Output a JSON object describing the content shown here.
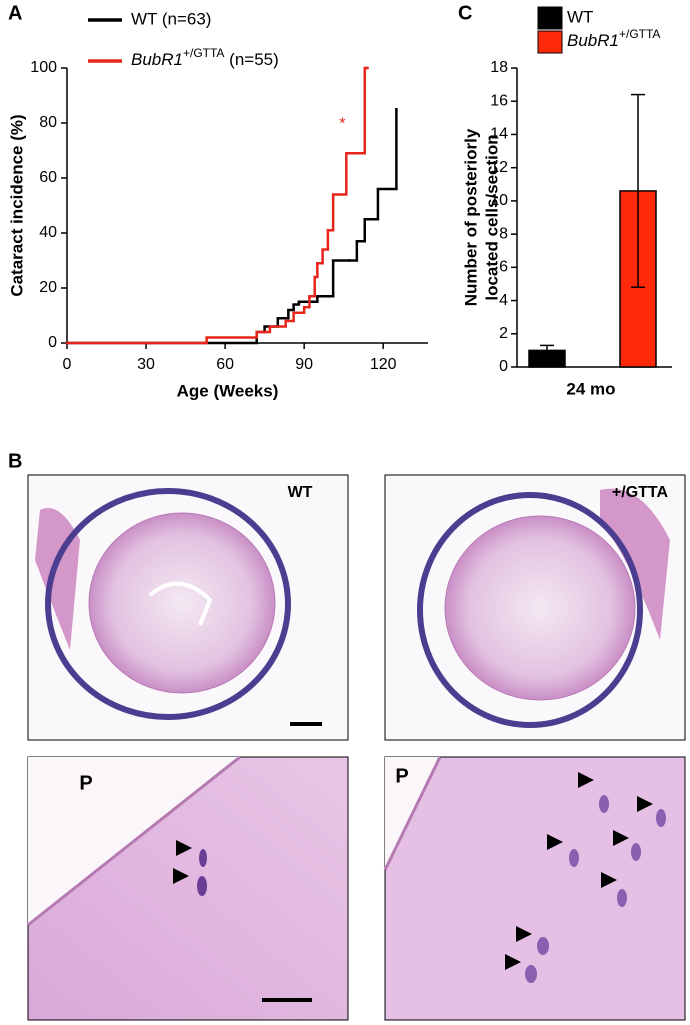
{
  "panel_labels": [
    "A",
    "B",
    "C"
  ],
  "chart_data": [
    {
      "type": "step",
      "xlabel": "Age (Weeks)",
      "ylabel": "Cataract incidence (%)",
      "xlim": [
        0,
        137
      ],
      "xticks": [
        0,
        30,
        60,
        90,
        120
      ],
      "ylim": [
        0,
        100
      ],
      "yticks": [
        0,
        20,
        40,
        60,
        80,
        100
      ],
      "series": [
        {
          "name": "WT (n=63)",
          "color": "#000000",
          "x": [
            0,
            72,
            75,
            80,
            84,
            86,
            88,
            95,
            101,
            107,
            110,
            113,
            118,
            125
          ],
          "values": [
            0,
            4,
            6,
            9,
            12,
            14,
            15,
            17,
            30,
            30,
            37,
            45,
            56,
            85
          ]
        },
        {
          "name": "BubR1+/GTTA (n=55)",
          "color": "#e8251a",
          "x": [
            0,
            53,
            72,
            77,
            83,
            86,
            90,
            92,
            94,
            95,
            97,
            99,
            101,
            106,
            113,
            114
          ],
          "values": [
            0,
            2,
            4,
            6,
            8,
            11,
            13,
            17,
            24,
            29,
            34,
            41,
            54,
            69,
            100,
            100
          ]
        }
      ],
      "annotations": [
        {
          "text": "*",
          "x": 106,
          "y": 81,
          "color": "#e8251a"
        }
      ]
    },
    {
      "type": "bar",
      "ylabel": [
        "Number of posteriorly",
        "located cells/section"
      ],
      "categories": [
        "24 mo"
      ],
      "ylim": [
        0,
        18
      ],
      "yticks": [
        0,
        2,
        4,
        6,
        8,
        10,
        12,
        14,
        16,
        18
      ],
      "series": [
        {
          "name": "WT",
          "color": "#000000",
          "values": [
            1.0
          ],
          "errors": [
            0.3
          ]
        },
        {
          "name": "BubR1+/GTTA",
          "color": "#ff2a0a",
          "values": [
            10.6
          ],
          "errors": [
            5.8
          ]
        }
      ]
    }
  ],
  "micrographs": [
    {
      "label": "WT"
    },
    {
      "label": "+/GTTA"
    },
    {
      "label": "P"
    },
    {
      "label": "P"
    }
  ]
}
